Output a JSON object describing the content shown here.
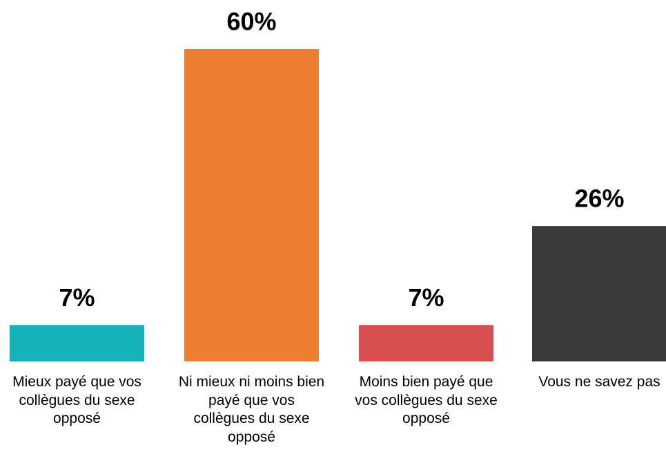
{
  "chart_data": {
    "type": "bar",
    "categories": [
      "Mieux payé que vos collègues du sexe opposé",
      "Ni mieux ni moins bien payé que vos collègues du sexe opposé",
      "Moins bien payé que vos collègues du sexe opposé",
      "Vous ne savez pas"
    ],
    "values": [
      7,
      60,
      7,
      26
    ],
    "value_labels": [
      "7%",
      "60%",
      "7%",
      "26%"
    ],
    "colors": [
      "#14b1b8",
      "#ed7d31",
      "#d94f4f",
      "#3b3a39"
    ]
  }
}
